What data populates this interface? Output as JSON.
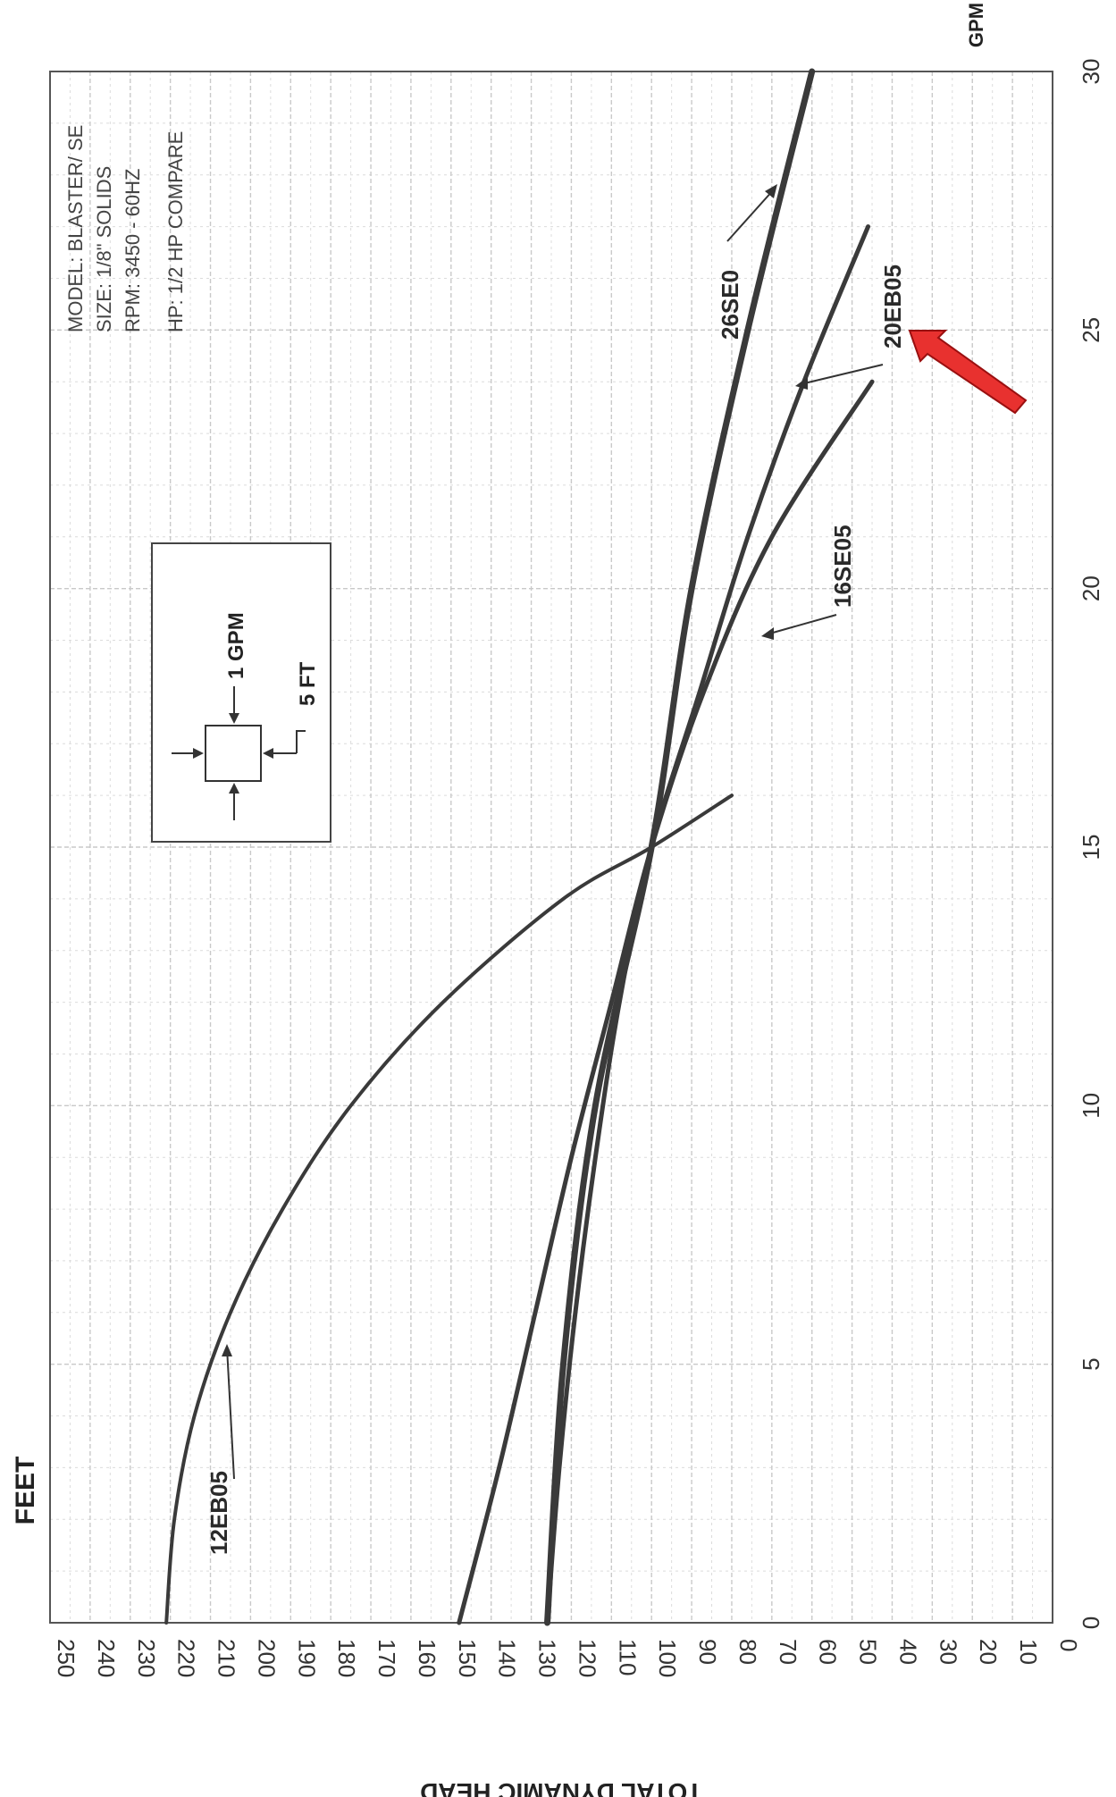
{
  "chart_data": {
    "type": "line",
    "rotation_note": "",
    "xlabel": "GPM",
    "ylabel": "TOTAL DYNAMIC HEAD",
    "y_unit_label": "FEET",
    "xlim": [
      0,
      30
    ],
    "ylim": [
      0,
      250
    ],
    "x_ticks": [
      "0",
      "5",
      "10",
      "15",
      "20",
      "25",
      "30"
    ],
    "y_ticks": [
      "0",
      "10",
      "20",
      "30",
      "40",
      "50",
      "60",
      "70",
      "80",
      "90",
      "100",
      "110",
      "120",
      "130",
      "140",
      "150",
      "160",
      "170",
      "180",
      "190",
      "200",
      "210",
      "220",
      "230",
      "240",
      "250"
    ],
    "grid": true,
    "info_box": [
      "MODEL: BLASTER/ SE",
      "SIZE: 1/8\" SOLIDS",
      "RPM: 3450 - 60HZ",
      "HP: 1/2 HP COMPARE"
    ],
    "legend": {
      "flow_label": "1 GPM",
      "head_label": "5 FT"
    },
    "series": [
      {
        "name": "12EB05",
        "x": [
          0,
          2,
          4,
          6,
          8,
          10,
          12,
          14,
          15,
          16
        ],
        "y": [
          221,
          219,
          214,
          205,
          192,
          175,
          152,
          122,
          100,
          80
        ]
      },
      {
        "name": "16SE05",
        "x": [
          0,
          3,
          6,
          9,
          12,
          15,
          18,
          21,
          24
        ],
        "y": [
          148,
          138,
          129,
          120,
          110,
          100,
          87,
          70,
          45
        ]
      },
      {
        "name": "20EB05",
        "x": [
          0,
          3,
          6,
          9,
          12,
          15,
          18,
          21,
          24,
          27
        ],
        "y": [
          126,
          123,
          119,
          114,
          108,
          100,
          88,
          76,
          62,
          46
        ]
      },
      {
        "name": "26SE0",
        "x": [
          0,
          5,
          10,
          15,
          20,
          25,
          30
        ],
        "y": [
          126,
          122,
          114,
          100,
          90,
          76,
          60
        ]
      }
    ],
    "series_labels": [
      "12EB05",
      "16SE05",
      "20EB05",
      "26SE0"
    ]
  }
}
